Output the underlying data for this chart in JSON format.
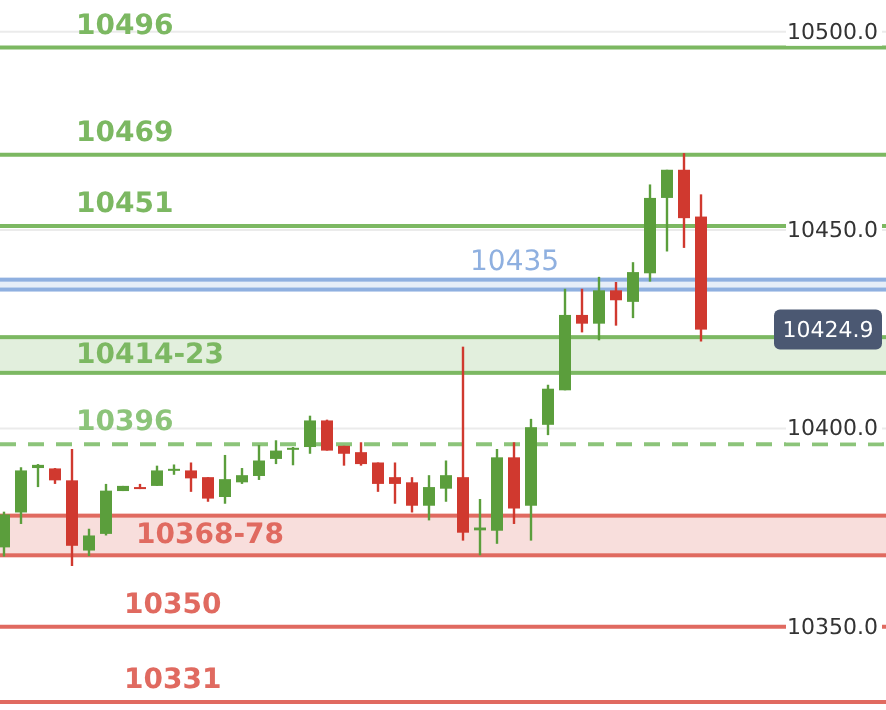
{
  "chart_data": {
    "type": "candlestick",
    "categories": [
      null,
      null,
      null,
      null,
      null,
      null,
      null,
      null,
      null,
      null,
      null,
      null,
      null,
      null,
      null,
      null,
      null,
      null,
      null,
      null,
      null,
      null,
      null,
      null,
      null,
      null,
      null,
      null,
      null,
      null,
      null,
      null,
      null,
      null,
      null,
      null,
      null,
      null,
      null,
      null,
      null,
      null
    ],
    "ohlc": [
      [
        10370,
        10379,
        10367.7,
        10378.3
      ],
      [
        10378.8,
        10390.2,
        10375.9,
        10389.4
      ],
      [
        10390,
        10391,
        10385.2,
        10390.8
      ],
      [
        10389.9,
        10390,
        10386,
        10386.9
      ],
      [
        10386.9,
        10394.8,
        10365.3,
        10370.4
      ],
      [
        10369.2,
        10374.7,
        10367.8,
        10373
      ],
      [
        10373.4,
        10386,
        10373,
        10384.3
      ],
      [
        10384.2,
        10385.5,
        10384.2,
        10385.5
      ],
      [
        10385.2,
        10386,
        10384.7,
        10384.7
      ],
      [
        10385.5,
        10390.6,
        10385.5,
        10389.4
      ],
      [
        10389.5,
        10390.9,
        10388.3,
        10389.8
      ],
      [
        10389.4,
        10391.4,
        10384,
        10387.4
      ],
      [
        10387.7,
        10387.7,
        10381.5,
        10382.3
      ],
      [
        10382.7,
        10393.3,
        10381,
        10387.2
      ],
      [
        10386.4,
        10390,
        10386,
        10388.2
      ],
      [
        10388,
        10395.8,
        10387,
        10391.9
      ],
      [
        10392.3,
        10397,
        10391,
        10394.4
      ],
      [
        10394.8,
        10395.3,
        10390.7,
        10395.1
      ],
      [
        10395.3,
        10403.2,
        10393.6,
        10402
      ],
      [
        10402,
        10402.2,
        10394.4,
        10394.4
      ],
      [
        10395.6,
        10395.6,
        10390.6,
        10393.6
      ],
      [
        10394,
        10396.5,
        10390.6,
        10391
      ],
      [
        10391.4,
        10391.4,
        10384,
        10386
      ],
      [
        10387.7,
        10391.4,
        10381,
        10386
      ],
      [
        10386.4,
        10387.7,
        10378.8,
        10380.5
      ],
      [
        10380.5,
        10388.2,
        10376.8,
        10385.2
      ],
      [
        10384.8,
        10391.9,
        10381.5,
        10388.2
      ],
      [
        10387.7,
        10420.6,
        10371.7,
        10373.7
      ],
      [
        10374.3,
        10382.2,
        10368,
        10375
      ],
      [
        10374.2,
        10394.8,
        10370.9,
        10392.7
      ],
      [
        10392.7,
        10396.5,
        10375.9,
        10379.8
      ],
      [
        10380.5,
        10402.4,
        10371.7,
        10400.3
      ],
      [
        10400.9,
        10411,
        10398.3,
        10410
      ],
      [
        10409.6,
        10435.2,
        10409.6,
        10428.6
      ],
      [
        10428.6,
        10435.2,
        10424.2,
        10426.4
      ],
      [
        10426.4,
        10438.2,
        10422.2,
        10434.8
      ],
      [
        10434.8,
        10436.9,
        10425.9,
        10432.3
      ],
      [
        10431.9,
        10441.9,
        10427.8,
        10439.4
      ],
      [
        10439.1,
        10461.5,
        10437,
        10458.1
      ],
      [
        10458.1,
        10465.2,
        10444.6,
        10465.2
      ],
      [
        10465.2,
        10469.4,
        10445.5,
        10453
      ],
      [
        10453.4,
        10459,
        10421.9,
        10424.9
      ]
    ],
    "ylim": [
      10329,
      10508
    ],
    "yticks": [
      {
        "value": 10500,
        "label": "10500.0"
      },
      {
        "value": 10450,
        "label": "10450.0"
      },
      {
        "value": 10400,
        "label": "10400.0"
      },
      {
        "value": 10350,
        "label": "10350.0"
      }
    ],
    "grid": "y",
    "tick_labels": "y",
    "ref_lines": [
      {
        "axis": "y",
        "value": 10496,
        "label": "10496",
        "color": "#7cb862"
      },
      {
        "axis": "y",
        "value": 10469,
        "label": "10469",
        "color": "#7cb862"
      },
      {
        "axis": "y",
        "value": 10451,
        "label": "10451",
        "color": "#7cb862"
      },
      {
        "axis": "y",
        "value": 10396,
        "label": "10396",
        "color": "#8cc47a",
        "line_style": "dashed"
      },
      {
        "axis": "y",
        "value": 10350,
        "label": "10350",
        "color": "#e06a60"
      },
      {
        "axis": "y",
        "value": 10331,
        "label": "10331",
        "color": "#e06a60"
      }
    ],
    "bands": [
      {
        "axis": "y",
        "from": 10435,
        "to": 10437.5,
        "label": "10435",
        "color": "#8fb0e0"
      },
      {
        "axis": "y",
        "from": 10414,
        "to": 10423,
        "label": "10414-23",
        "color": "#7cb862"
      },
      {
        "axis": "y",
        "from": 10368,
        "to": 10378,
        "label": "10368-78",
        "color": "#e06a60"
      }
    ],
    "annotations": [
      "10424.9"
    ]
  }
}
